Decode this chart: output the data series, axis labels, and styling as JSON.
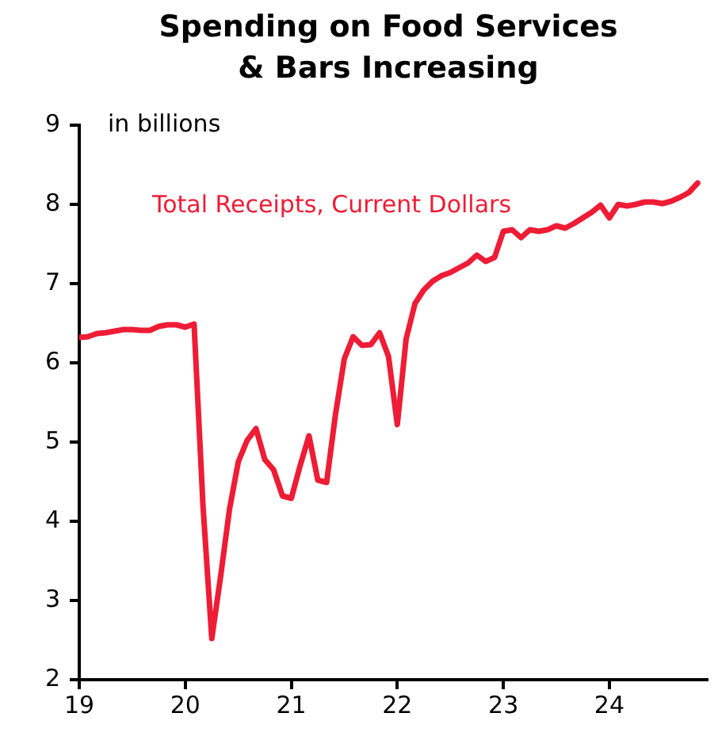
{
  "chart_data": {
    "type": "line",
    "title": "Spending on Food Services & Bars Increasing",
    "annotations": [
      "in billions"
    ],
    "x": [
      19,
      19.083,
      19.167,
      19.25,
      19.333,
      19.417,
      19.5,
      19.583,
      19.667,
      19.75,
      19.833,
      19.917,
      20,
      20.083,
      20.167,
      20.25,
      20.333,
      20.417,
      20.5,
      20.583,
      20.667,
      20.75,
      20.833,
      20.917,
      21,
      21.083,
      21.167,
      21.25,
      21.333,
      21.417,
      21.5,
      21.583,
      21.667,
      21.75,
      21.833,
      21.917,
      22,
      22.083,
      22.167,
      22.25,
      22.333,
      22.417,
      22.5,
      22.583,
      22.667,
      22.75,
      22.833,
      22.917,
      23,
      23.083,
      23.167,
      23.25,
      23.333,
      23.417,
      23.5,
      23.583,
      23.667,
      23.75,
      23.833,
      23.917,
      24,
      24.083,
      24.167,
      24.25,
      24.333,
      24.417,
      24.5,
      24.583,
      24.667,
      24.75,
      24.833
    ],
    "series": [
      {
        "name": "Total Receipts, Current Dollars",
        "color": "#ee1c35",
        "values": [
          6.32,
          6.33,
          6.37,
          6.38,
          6.4,
          6.42,
          6.42,
          6.41,
          6.41,
          6.46,
          6.48,
          6.48,
          6.45,
          6.49,
          4.2,
          2.52,
          3.3,
          4.15,
          4.75,
          5.02,
          5.17,
          4.78,
          4.65,
          4.32,
          4.29,
          4.7,
          5.08,
          4.52,
          4.49,
          5.35,
          6.05,
          6.33,
          6.22,
          6.23,
          6.38,
          6.08,
          5.22,
          6.3,
          6.75,
          6.92,
          7.03,
          7.1,
          7.14,
          7.2,
          7.26,
          7.36,
          7.28,
          7.33,
          7.66,
          7.68,
          7.58,
          7.68,
          7.66,
          7.68,
          7.73,
          7.7,
          7.76,
          7.83,
          7.9,
          7.99,
          7.83,
          8.0,
          7.98,
          8.0,
          8.03,
          8.03,
          8.01,
          8.04,
          8.09,
          8.15,
          8.27
        ]
      }
    ],
    "xlim": [
      19,
      24.92
    ],
    "xticks": [
      19,
      20,
      21,
      22,
      23,
      24
    ],
    "ylim": [
      2,
      9
    ],
    "yticks": [
      2,
      3,
      4,
      5,
      6,
      7,
      8,
      9
    ],
    "grid": false,
    "legend": false,
    "marker": "none",
    "line_style": "solid"
  }
}
